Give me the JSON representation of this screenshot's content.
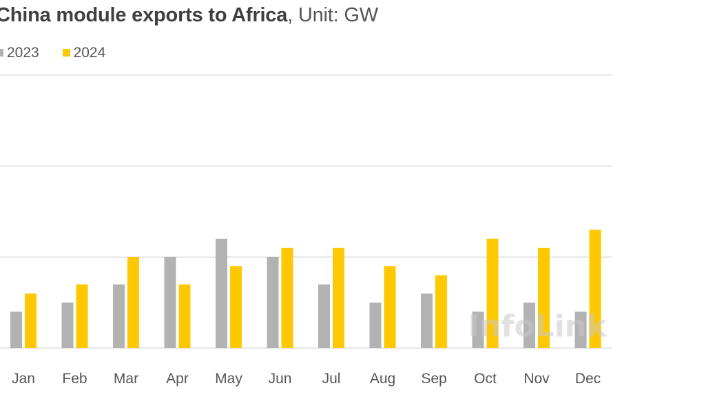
{
  "title_bold": "China module exports to Africa",
  "title_rest": ", Unit: GW",
  "watermark": "InfoLink",
  "colors": {
    "series_2023": "#b2b2b2",
    "series_2024": "#ffc800",
    "grid": "#d9d9d9"
  },
  "chart_data": {
    "type": "bar",
    "title": "China module exports to Africa, Unit: GW",
    "categories": [
      "Jan",
      "Feb",
      "Mar",
      "Apr",
      "May",
      "Jun",
      "Jul",
      "Aug",
      "Sep",
      "Oct",
      "Nov",
      "Dec"
    ],
    "series": [
      {
        "name": "2023",
        "values": [
          0.8,
          1.0,
          1.4,
          2.0,
          2.4,
          2.0,
          1.4,
          1.0,
          1.2,
          0.8,
          1.0,
          0.8
        ]
      },
      {
        "name": "2024",
        "values": [
          1.2,
          1.4,
          2.0,
          1.4,
          1.8,
          2.2,
          2.2,
          1.8,
          1.6,
          2.4,
          2.2,
          2.6
        ]
      }
    ],
    "ylim": [
      0,
      6
    ],
    "gridlines": [
      0,
      2,
      4,
      6
    ],
    "grid": true,
    "legend_position": "top-left",
    "xlabel": "",
    "ylabel": ""
  }
}
